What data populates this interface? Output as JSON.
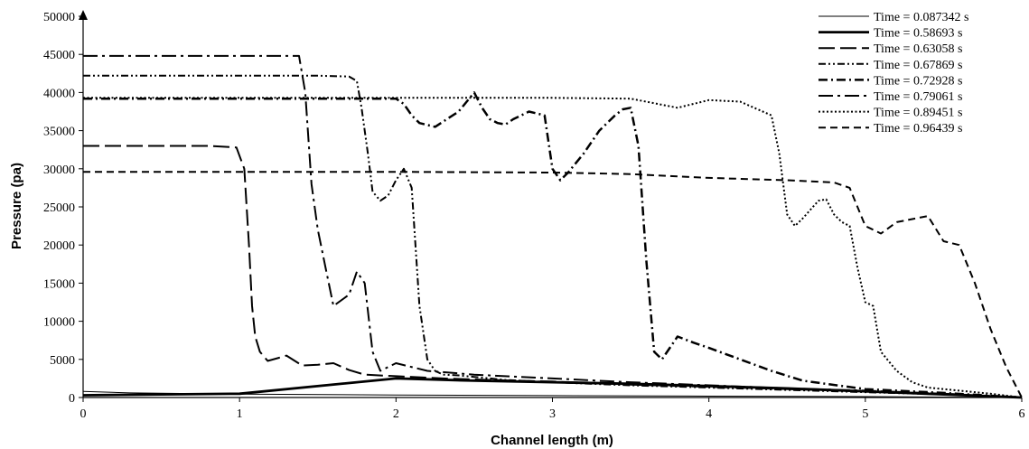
{
  "chart_data": {
    "type": "line",
    "title": "",
    "xlabel": "Channel length (m)",
    "ylabel": "Pressure (pa)",
    "xlim": [
      0,
      6
    ],
    "ylim": [
      0,
      50000
    ],
    "xticks": [
      "0",
      "1",
      "2",
      "3",
      "4",
      "5",
      "6"
    ],
    "yticks": [
      "0",
      "5000",
      "10000",
      "15000",
      "20000",
      "25000",
      "30000",
      "35000",
      "40000",
      "45000",
      "50000"
    ],
    "grid": false,
    "legend_position": "top-right",
    "series": [
      {
        "name": "Time = 0.087342 s",
        "style": "thin-solid",
        "x": [
          0,
          0.3,
          1,
          2,
          3,
          4,
          5,
          6
        ],
        "y": [
          800,
          600,
          450,
          330,
          250,
          180,
          120,
          0
        ]
      },
      {
        "name": "Time = 0.58693 s",
        "style": "solid",
        "x": [
          0,
          1,
          2,
          2.5,
          3,
          3.5,
          4,
          4.5,
          5,
          5.5,
          6
        ],
        "y": [
          300,
          500,
          2500,
          2200,
          2000,
          1800,
          1500,
          1200,
          800,
          400,
          0
        ]
      },
      {
        "name": "Time = 0.63058 s",
        "style": "long-dash",
        "x": [
          0,
          0.8,
          0.98,
          1.03,
          1.06,
          1.08,
          1.1,
          1.13,
          1.18,
          1.25,
          1.3,
          1.4,
          1.5,
          1.6,
          1.7,
          1.8,
          2.0,
          2.3,
          2.6,
          3.0,
          3.5,
          4.0,
          4.5,
          5.0,
          5.5,
          6.0
        ],
        "y": [
          33000,
          33000,
          32800,
          30000,
          20000,
          12000,
          8000,
          6000,
          4800,
          5200,
          5500,
          4200,
          4300,
          4500,
          3600,
          3000,
          2800,
          2500,
          2300,
          2100,
          1700,
          1400,
          1100,
          800,
          500,
          0
        ]
      },
      {
        "name": "Time = 0.67869 s",
        "style": "dash-dot-dot",
        "x": [
          0,
          0.5,
          1,
          1.5,
          1.7,
          1.75,
          1.78,
          1.82,
          1.85,
          1.9,
          1.95,
          2.0,
          2.05,
          2.1,
          2.15,
          2.2,
          2.25,
          2.3,
          2.4,
          2.5,
          2.6,
          2.7,
          3.0,
          3.5,
          4.0,
          4.5,
          5.0,
          5.5,
          6.0
        ],
        "y": [
          42200,
          42200,
          42200,
          42200,
          42100,
          41500,
          38000,
          32000,
          27000,
          25800,
          26500,
          28500,
          30000,
          27500,
          12000,
          5000,
          3500,
          3000,
          2900,
          2700,
          2500,
          2300,
          2000,
          1600,
          1300,
          1000,
          700,
          400,
          0
        ]
      },
      {
        "name": "Time = 0.72928 s",
        "style": "dash-dot",
        "x": [
          0,
          0.5,
          1,
          1.5,
          1.9,
          2.0,
          2.05,
          2.1,
          2.15,
          2.25,
          2.4,
          2.5,
          2.55,
          2.6,
          2.65,
          2.7,
          2.75,
          2.85,
          2.95,
          3.0,
          3.05,
          3.1,
          3.2,
          3.3,
          3.4,
          3.45,
          3.5,
          3.55,
          3.6,
          3.65,
          3.7,
          3.8,
          3.9,
          4.0,
          4.2,
          4.4,
          4.6,
          5.0,
          5.5,
          6.0
        ],
        "y": [
          39200,
          39200,
          39200,
          39200,
          39200,
          39200,
          38500,
          37000,
          36000,
          35500,
          37500,
          40000,
          38000,
          36500,
          36000,
          35800,
          36500,
          37500,
          37000,
          30000,
          28500,
          29500,
          32000,
          35000,
          37000,
          37800,
          38000,
          33000,
          18000,
          6000,
          5000,
          8000,
          7200,
          6500,
          5000,
          3500,
          2200,
          1100,
          600,
          0
        ]
      },
      {
        "name": "Time = 0.79061 s",
        "style": "long-dash-dot",
        "x": [
          0,
          0.5,
          1,
          1.38,
          1.42,
          1.46,
          1.5,
          1.55,
          1.6,
          1.7,
          1.75,
          1.8,
          1.85,
          1.9,
          2.0,
          2.2,
          2.5,
          3.0,
          3.5,
          4.0,
          4.5,
          5.0,
          5.5,
          6.0
        ],
        "y": [
          44800,
          44800,
          44800,
          44800,
          40000,
          28000,
          22000,
          17000,
          12000,
          13500,
          16500,
          15000,
          6000,
          3500,
          4500,
          3500,
          3000,
          2500,
          2000,
          1600,
          1200,
          900,
          500,
          0
        ]
      },
      {
        "name": "Time = 0.89451 s",
        "style": "dotted",
        "x": [
          0,
          0.5,
          1,
          1.5,
          2.0,
          2.5,
          3.0,
          3.5,
          3.8,
          4.0,
          4.2,
          4.4,
          4.45,
          4.5,
          4.55,
          4.6,
          4.7,
          4.75,
          4.8,
          4.85,
          4.9,
          4.95,
          5.0,
          5.05,
          5.1,
          5.2,
          5.3,
          5.4,
          5.5,
          5.6,
          5.8,
          6.0
        ],
        "y": [
          39300,
          39300,
          39300,
          39300,
          39300,
          39300,
          39300,
          39200,
          38000,
          39000,
          38800,
          37000,
          32000,
          24000,
          22500,
          23500,
          25800,
          26000,
          24000,
          23000,
          22500,
          17000,
          12500,
          12000,
          6000,
          3500,
          2000,
          1300,
          1100,
          900,
          500,
          0
        ]
      },
      {
        "name": "Time = 0.96439 s",
        "style": "short-dash",
        "x": [
          0,
          0.5,
          1,
          2,
          3,
          3.5,
          4.0,
          4.5,
          4.8,
          4.9,
          5.0,
          5.1,
          5.2,
          5.3,
          5.4,
          5.5,
          5.6,
          5.7,
          5.8,
          5.9,
          6.0
        ],
        "y": [
          29600,
          29600,
          29600,
          29600,
          29500,
          29300,
          28800,
          28500,
          28200,
          27500,
          22500,
          21500,
          23000,
          23400,
          23800,
          20500,
          20000,
          15000,
          9000,
          4000,
          0
        ]
      }
    ]
  }
}
